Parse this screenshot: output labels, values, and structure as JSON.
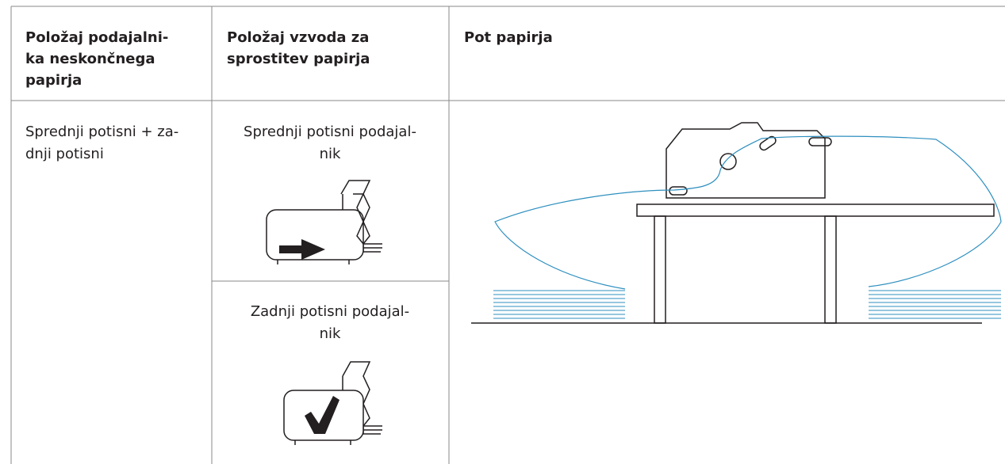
{
  "table": {
    "header": [
      [
        "Položaj podajalni-",
        "ka neskončnega",
        "papirja"
      ],
      [
        "Položaj vzvoda za",
        "sprostitev papirja"
      ],
      [
        "Pot papirja"
      ]
    ],
    "body": {
      "feeder_position": [
        "Sprednji potisni + za-",
        "dnji potisni"
      ],
      "lever_positions": [
        [
          "Sprednji potisni podajal-",
          "nik"
        ],
        [
          "Zadnji potisni podajal-",
          "nik"
        ]
      ]
    }
  }
}
